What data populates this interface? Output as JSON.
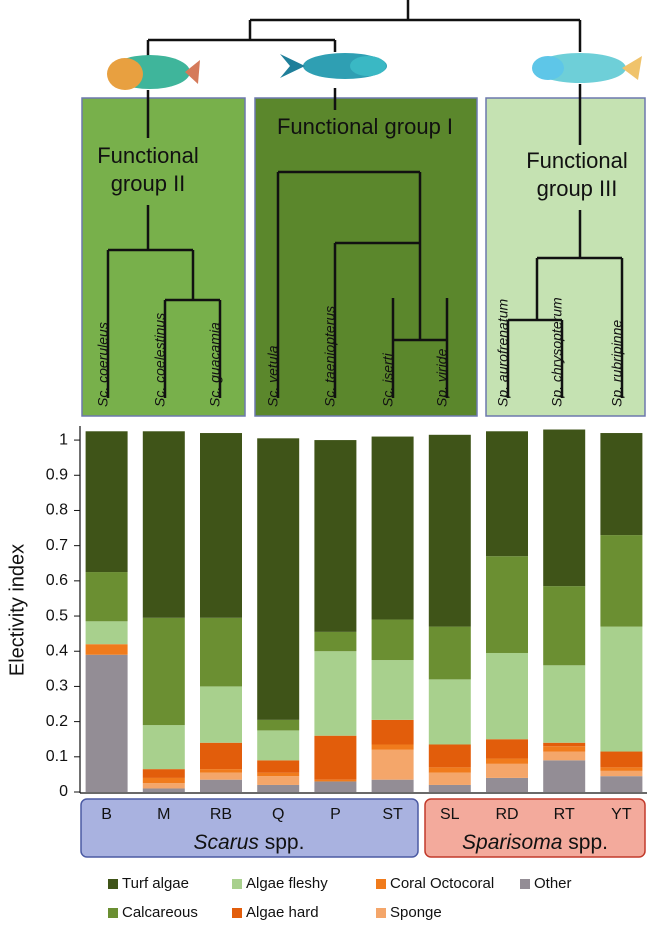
{
  "dendrogram": {
    "groups": [
      {
        "label": [
          "Functional",
          "group II"
        ],
        "species": [
          "Sc. coeruleus",
          "Sc. coelestinus",
          "Sc. guacamia"
        ]
      },
      {
        "label": [
          "Functional group I"
        ],
        "species": [
          "Sc. vetula",
          "Sc. taeniopterus",
          "Sc. iserti",
          "Sp. viride"
        ]
      },
      {
        "label": [
          "Functional",
          "group III"
        ],
        "species": [
          "Sp. aurofrenatum",
          "Sp. chrysopterum",
          "Sp. rubripinne"
        ]
      }
    ]
  },
  "chart_data": {
    "type": "bar",
    "stacked": true,
    "y_label": "Electivity index",
    "categories": [
      "B",
      "M",
      "RB",
      "Q",
      "P",
      "ST",
      "SL",
      "RD",
      "RT",
      "YT"
    ],
    "groups": [
      {
        "genus": "Scarus",
        "suffix": "spp."
      },
      {
        "genus": "Sparisoma",
        "suffix": "spp."
      }
    ],
    "ylim": [
      0,
      1.04
    ],
    "yticks": [
      0,
      0.1,
      0.2,
      0.3,
      0.4,
      0.5,
      0.6,
      0.7,
      0.8,
      0.9,
      1
    ],
    "series": [
      {
        "name": "Turf algae",
        "color": "#3f5418",
        "values": [
          0.4,
          0.53,
          0.525,
          0.8,
          0.545,
          0.52,
          0.545,
          0.355,
          0.445,
          0.29
        ]
      },
      {
        "name": "Calcareous",
        "color": "#6b8f32",
        "values": [
          0.14,
          0.305,
          0.195,
          0.03,
          0.055,
          0.115,
          0.15,
          0.275,
          0.225,
          0.26
        ]
      },
      {
        "name": "Algae fleshy",
        "color": "#a8d08d",
        "values": [
          0.065,
          0.125,
          0.16,
          0.085,
          0.24,
          0.17,
          0.185,
          0.245,
          0.22,
          0.355
        ]
      },
      {
        "name": "Algae hard",
        "color": "#e25d0b",
        "values": [
          0,
          0.025,
          0.075,
          0.035,
          0.125,
          0.07,
          0.065,
          0.055,
          0.01,
          0.045
        ]
      },
      {
        "name": "Coral Octocoral",
        "color": "#f07b1c",
        "values": [
          0.03,
          0.015,
          0.01,
          0.01,
          0.005,
          0.015,
          0.015,
          0.015,
          0.015,
          0.01
        ]
      },
      {
        "name": "Sponge",
        "color": "#f4a66a",
        "values": [
          0,
          0.015,
          0.02,
          0.025,
          0,
          0.085,
          0.035,
          0.04,
          0.025,
          0.015
        ]
      },
      {
        "name": "Other",
        "color": "#938d95",
        "values": [
          0.39,
          0.01,
          0.035,
          0.02,
          0.03,
          0.035,
          0.02,
          0.04,
          0.09,
          0.045
        ]
      }
    ]
  }
}
